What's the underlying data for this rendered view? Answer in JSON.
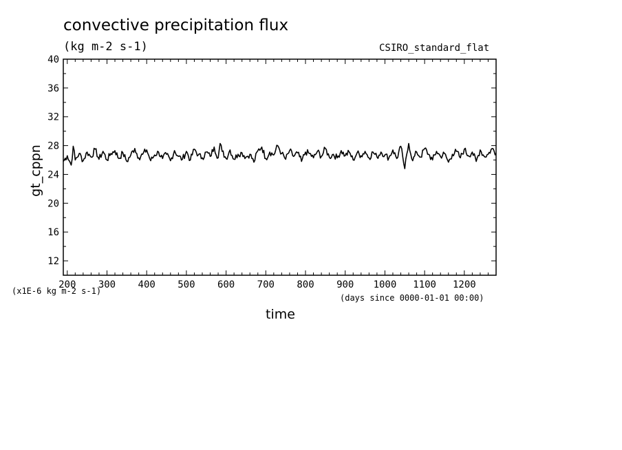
{
  "chart_data": {
    "type": "line",
    "title": "convective precipitation flux",
    "units": "(kg m-2 s-1)",
    "model": "CSIRO_standard_flat",
    "xlabel": "time",
    "ylabel": "gt_cppn",
    "scale_note": "(x1E-6 kg m-2 s-1)",
    "time_origin": "(days since 0000-01-01 00:00)",
    "xlim": [
      190,
      1280
    ],
    "ylim": [
      10,
      40
    ],
    "x_ticks": [
      200,
      300,
      400,
      500,
      600,
      700,
      800,
      900,
      1000,
      1100,
      1200
    ],
    "x_tick_labels": [
      "200",
      "300",
      "400",
      "500",
      "600",
      "700",
      "800",
      "900",
      "1000",
      "1100",
      "1200"
    ],
    "y_ticks": [
      12,
      16,
      20,
      24,
      28,
      32,
      36,
      40
    ],
    "y_tick_labels": [
      "12",
      "16",
      "20",
      "24",
      "28",
      "32",
      "36",
      "40"
    ],
    "series": [
      {
        "name": "gt_cppn",
        "x": [
          190,
          200,
          210,
          215,
          220,
          230,
          240,
          250,
          260,
          270,
          280,
          290,
          300,
          310,
          320,
          330,
          340,
          350,
          360,
          370,
          380,
          390,
          400,
          410,
          420,
          430,
          440,
          450,
          460,
          470,
          480,
          490,
          500,
          510,
          520,
          530,
          540,
          550,
          560,
          570,
          580,
          585,
          590,
          600,
          610,
          620,
          630,
          640,
          650,
          660,
          670,
          680,
          690,
          700,
          710,
          720,
          730,
          740,
          750,
          760,
          770,
          780,
          790,
          800,
          810,
          820,
          830,
          840,
          850,
          860,
          870,
          880,
          890,
          900,
          910,
          920,
          930,
          940,
          950,
          960,
          970,
          980,
          990,
          1000,
          1010,
          1020,
          1030,
          1040,
          1045,
          1050,
          1060,
          1070,
          1080,
          1090,
          1100,
          1110,
          1120,
          1130,
          1140,
          1150,
          1160,
          1170,
          1180,
          1190,
          1200,
          1210,
          1220,
          1230,
          1240,
          1250,
          1260,
          1270,
          1280
        ],
        "values": [
          25.8,
          26.6,
          25.3,
          27.9,
          26.0,
          26.9,
          25.9,
          27.1,
          26.4,
          27.5,
          26.1,
          27.2,
          26.0,
          26.9,
          27.3,
          26.2,
          27.0,
          25.8,
          26.7,
          27.6,
          26.3,
          26.8,
          27.4,
          25.9,
          26.7,
          27.1,
          26.2,
          26.8,
          25.9,
          27.3,
          26.5,
          26.1,
          27.2,
          26.0,
          27.5,
          26.7,
          26.3,
          27.1,
          26.5,
          27.8,
          26.3,
          28.3,
          27.2,
          26.2,
          27.4,
          26.1,
          26.8,
          27.0,
          26.4,
          26.8,
          25.7,
          27.3,
          27.8,
          26.2,
          27.1,
          26.7,
          28.0,
          26.9,
          26.1,
          27.3,
          26.5,
          27.0,
          25.8,
          27.1,
          26.9,
          26.3,
          27.2,
          26.5,
          27.6,
          26.4,
          26.8,
          26.3,
          27.3,
          26.6,
          27.1,
          26.0,
          27.0,
          26.6,
          27.2,
          26.3,
          27.1,
          26.4,
          27.1,
          26.7,
          26.3,
          27.4,
          26.2,
          27.9,
          26.4,
          24.8,
          28.3,
          25.9,
          27.1,
          26.4,
          27.6,
          26.8,
          26.0,
          27.2,
          26.5,
          26.9,
          25.7,
          26.8,
          27.2,
          26.3,
          27.5,
          26.6,
          27.1,
          25.8,
          27.4,
          26.5,
          26.8,
          27.6,
          26.9
        ]
      }
    ]
  }
}
